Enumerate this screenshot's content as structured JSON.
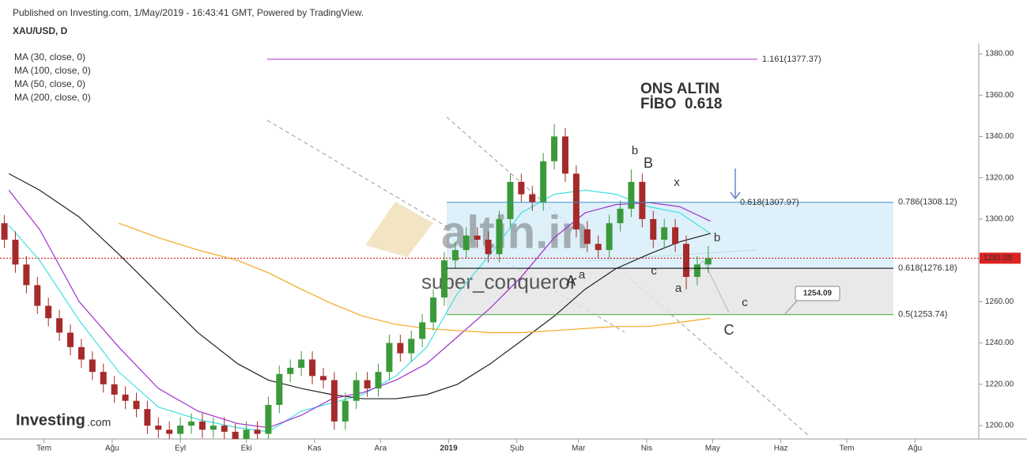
{
  "chart_data": {
    "type": "candlestick",
    "published": "Published on Investing.com, 1/May/2019 - 16:43:41 GMT, Powered by TradingView.",
    "symbol": "XAU/USD, D",
    "xlim": [
      -20,
      425
    ],
    "ylim": [
      1193.5,
      1385
    ],
    "xticks": [
      {
        "value": 0,
        "label": "Tem"
      },
      {
        "value": 31,
        "label": "Ağu"
      },
      {
        "value": 62,
        "label": "Eyl"
      },
      {
        "value": 92,
        "label": "Eki"
      },
      {
        "value": 123,
        "label": "Kas"
      },
      {
        "value": 153,
        "label": "Ara"
      },
      {
        "value": 184,
        "label": "2019"
      },
      {
        "value": 215,
        "label": "Şub"
      },
      {
        "value": 243,
        "label": "Mar"
      },
      {
        "value": 274,
        "label": "Nis"
      },
      {
        "value": 304,
        "label": "May"
      },
      {
        "value": 335,
        "label": "Haz"
      },
      {
        "value": 365,
        "label": "Tem"
      },
      {
        "value": 396,
        "label": "Ağu"
      }
    ],
    "yticks": [
      {
        "value": 1200,
        "label": "1200.00"
      },
      {
        "value": 1220,
        "label": "1220.00"
      },
      {
        "value": 1240,
        "label": "1240.00"
      },
      {
        "value": 1260,
        "label": "1260.00"
      },
      {
        "value": 1280,
        "label": "1280.00"
      },
      {
        "value": 1300,
        "label": "1300.00"
      },
      {
        "value": 1320,
        "label": "1320.00"
      },
      {
        "value": 1340,
        "label": "1340.00"
      },
      {
        "value": 1360,
        "label": "1360.00"
      },
      {
        "value": 1380,
        "label": "1380.00"
      }
    ],
    "up_color": "#3a9a3a",
    "down_color": "#a52a2a",
    "candles": {
      "x": [
        -18,
        -13,
        -8,
        -3,
        2,
        7,
        12,
        17,
        22,
        27,
        32,
        37,
        42,
        47,
        52,
        57,
        62,
        67,
        72,
        77,
        82,
        87,
        92,
        97,
        102,
        107,
        112,
        117,
        122,
        127,
        132,
        137,
        142,
        147,
        152,
        157,
        162,
        167,
        172,
        177,
        182,
        187,
        192,
        197,
        202,
        207,
        212,
        217,
        222,
        227,
        232,
        237,
        242,
        247,
        252,
        257,
        262,
        267,
        272,
        277,
        282,
        287,
        292,
        297,
        302
      ],
      "open": [
        1298,
        1290,
        1278,
        1268,
        1258,
        1252,
        1245,
        1238,
        1232,
        1226,
        1220,
        1215,
        1212,
        1208,
        1200,
        1198,
        1196,
        1200,
        1202,
        1198,
        1200,
        1197,
        1193,
        1198,
        1196,
        1210,
        1225,
        1228,
        1232,
        1224,
        1222,
        1202,
        1212,
        1222,
        1218,
        1226,
        1240,
        1235,
        1242,
        1250,
        1262,
        1280,
        1285,
        1292,
        1290,
        1283,
        1300,
        1318,
        1312,
        1308,
        1328,
        1340,
        1322,
        1295,
        1288,
        1285,
        1298,
        1305,
        1318,
        1300,
        1290,
        1296,
        1288,
        1272,
        1278
      ],
      "high": [
        1302,
        1294,
        1282,
        1272,
        1262,
        1256,
        1249,
        1242,
        1236,
        1230,
        1224,
        1219,
        1216,
        1212,
        1204,
        1202,
        1204,
        1206,
        1206,
        1204,
        1204,
        1201,
        1202,
        1202,
        1214,
        1229,
        1232,
        1236,
        1236,
        1228,
        1226,
        1216,
        1226,
        1226,
        1230,
        1244,
        1244,
        1246,
        1254,
        1266,
        1284,
        1289,
        1296,
        1296,
        1294,
        1304,
        1322,
        1322,
        1316,
        1332,
        1346,
        1344,
        1326,
        1299,
        1292,
        1302,
        1309,
        1324,
        1322,
        1304,
        1300,
        1300,
        1292,
        1282,
        1287
      ],
      "low": [
        1286,
        1274,
        1264,
        1254,
        1248,
        1241,
        1234,
        1228,
        1222,
        1216,
        1211,
        1208,
        1204,
        1196,
        1194,
        1192,
        1192,
        1196,
        1194,
        1194,
        1193,
        1189,
        1189,
        1192,
        1192,
        1206,
        1221,
        1224,
        1220,
        1218,
        1198,
        1198,
        1208,
        1214,
        1214,
        1222,
        1231,
        1231,
        1238,
        1246,
        1258,
        1276,
        1281,
        1286,
        1279,
        1279,
        1296,
        1308,
        1304,
        1304,
        1324,
        1318,
        1291,
        1284,
        1281,
        1281,
        1294,
        1301,
        1296,
        1286,
        1286,
        1284,
        1266,
        1268,
        1274
      ],
      "close": [
        1290,
        1278,
        1268,
        1258,
        1252,
        1245,
        1238,
        1232,
        1226,
        1220,
        1215,
        1212,
        1208,
        1200,
        1198,
        1196,
        1200,
        1202,
        1198,
        1200,
        1197,
        1193,
        1198,
        1196,
        1210,
        1225,
        1228,
        1232,
        1224,
        1222,
        1202,
        1212,
        1222,
        1218,
        1226,
        1240,
        1235,
        1242,
        1250,
        1262,
        1280,
        1285,
        1292,
        1290,
        1283,
        1300,
        1318,
        1312,
        1308,
        1328,
        1340,
        1322,
        1295,
        1288,
        1285,
        1298,
        1305,
        1318,
        1300,
        1290,
        1296,
        1288,
        1272,
        1278,
        1281
      ]
    },
    "ma_x": [
      -16,
      -2,
      16,
      34,
      52,
      70,
      88,
      102,
      117,
      131,
      145,
      160,
      174,
      188,
      203,
      217,
      232,
      246,
      260,
      275,
      289,
      303
    ],
    "series": [
      {
        "name": "MA (30, close, 0)",
        "color": "#40e0e0",
        "values": [
          1297,
          1280,
          1251,
          1226,
          1209,
          1203,
          1199,
          1197,
          1207,
          1211,
          1215,
          1224,
          1238,
          1264,
          1283,
          1303,
          1312,
          1314,
          1312,
          1306,
          1303,
          1293
        ]
      },
      {
        "name": "MA (100, close, 0)",
        "color": "#222222",
        "values": [
          1322,
          1314,
          1301,
          1283,
          1264,
          1245,
          1230,
          1222,
          1218,
          1215,
          1213,
          1213,
          1215,
          1220,
          1230,
          1241,
          1253,
          1266,
          1276,
          1283,
          1289,
          1293
        ]
      },
      {
        "name": "MA (50, close, 0)",
        "color": "#a030d0",
        "values": [
          1314,
          1295,
          1260,
          1238,
          1218,
          1207,
          1201,
          1199,
          1205,
          1213,
          1216,
          1222,
          1230,
          1243,
          1257,
          1272,
          1291,
          1303,
          1307,
          1308,
          1306,
          1299
        ]
      },
      {
        "name": "MA (200, close, 0)",
        "color": "#f5a623",
        "values": [
          null,
          null,
          null,
          1298,
          1291,
          1285,
          1280,
          1274,
          1266,
          1259,
          1253,
          1249,
          1247,
          1246,
          1245,
          1245,
          1246,
          1247,
          1248,
          1248,
          1250,
          1252
        ]
      }
    ],
    "fib_levels": [
      {
        "label": "1.161(1377.37)",
        "value": 1377.37,
        "color": "#a030c0"
      },
      {
        "label": "0.786(1308.12)",
        "value": 1308.12,
        "color": "#3a8fc0"
      },
      {
        "label": "0.618(1276.18)",
        "value": 1276.18,
        "color": "#000000"
      },
      {
        "label": "0.5(1253.74)",
        "value": 1253.74,
        "color": "#3aaa3a"
      }
    ],
    "fib_note": {
      "label": "0.618(1307.97)",
      "value": 1307.97
    },
    "last_price": 1281.05,
    "price_callout": 1254.09,
    "annotations": [
      "ONS ALTIN",
      "FİBO  0.618"
    ],
    "wave_labels": [
      "b",
      "B",
      "x",
      "b",
      "c",
      "a",
      "A",
      "a",
      "c",
      "C"
    ],
    "watermarks": [
      "super_conqueror",
      "altin.in"
    ],
    "logo": [
      "Investing",
      ".com"
    ]
  }
}
